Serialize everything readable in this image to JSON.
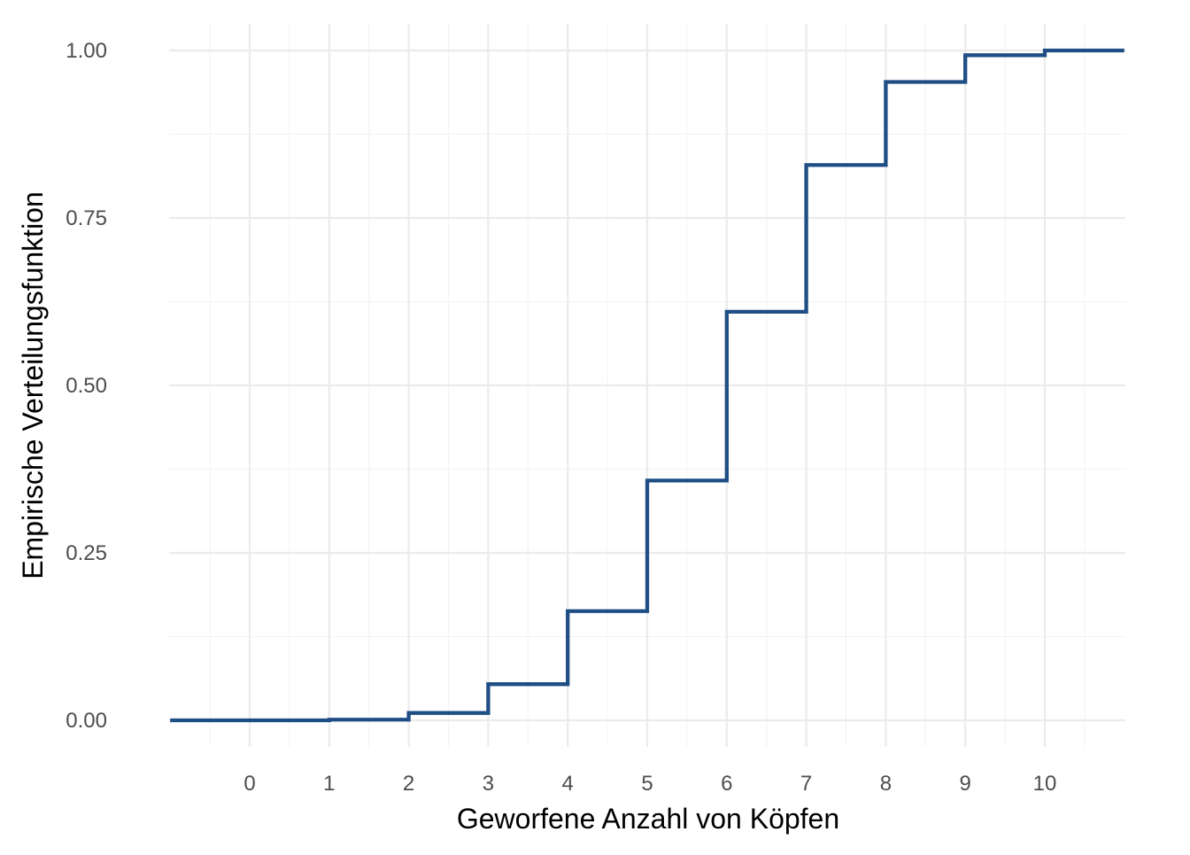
{
  "chart_data": {
    "type": "line",
    "subtype": "step-ecdf",
    "title": "",
    "xlabel": "Geworfene Anzahl von Köpfen",
    "ylabel": "Empirische Verteilungsfunktion",
    "xlim": [
      -1,
      11
    ],
    "ylim": [
      0,
      1
    ],
    "x_ticks": [
      "0",
      "1",
      "2",
      "3",
      "4",
      "5",
      "6",
      "7",
      "8",
      "9",
      "10"
    ],
    "y_ticks": [
      "0.00",
      "0.25",
      "0.50",
      "0.75",
      "1.00"
    ],
    "grid": true,
    "color": "#1f4e85",
    "series": [
      {
        "x": [
          -1,
          0,
          1,
          2,
          3,
          4,
          5,
          6,
          7,
          8,
          9,
          10,
          11
        ],
        "y": [
          0,
          0,
          0.001,
          0.011,
          0.054,
          0.163,
          0.358,
          0.61,
          0.829,
          0.953,
          0.993,
          1.0,
          1.0
        ]
      }
    ]
  }
}
